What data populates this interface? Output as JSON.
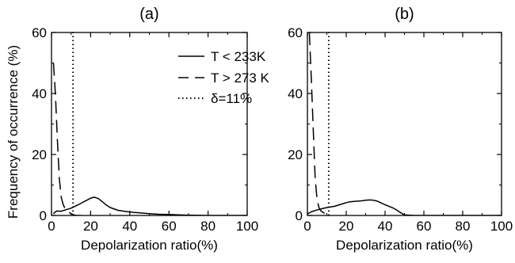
{
  "chart_data": [
    {
      "type": "line",
      "title": "(a)",
      "xlabel": "Depolarization ratio(%)",
      "ylabel": "Frequency of occurrence (%)",
      "xlim": [
        0,
        100
      ],
      "ylim": [
        0,
        60
      ],
      "xticks": [
        "0",
        "20",
        "40",
        "60",
        "80",
        "100"
      ],
      "yticks": [
        "0",
        "20",
        "40",
        "60"
      ],
      "grid": false,
      "legend_position": "top-right",
      "series": [
        {
          "name": "T < 233K",
          "style": "solid",
          "x": [
            1,
            2,
            3,
            4,
            5,
            6,
            8,
            10,
            12,
            14,
            16,
            18,
            20,
            22,
            24,
            26,
            28,
            30,
            34,
            38,
            42,
            46,
            50,
            55,
            60,
            65,
            70,
            75,
            80,
            85,
            90,
            95,
            100
          ],
          "y": [
            0.5,
            1.2,
            1.5,
            1.4,
            1.4,
            1.6,
            2.0,
            2.4,
            3.0,
            3.6,
            4.3,
            5.0,
            5.7,
            6.0,
            5.5,
            4.5,
            3.4,
            2.6,
            1.7,
            1.3,
            1.0,
            0.8,
            0.6,
            0.4,
            0.3,
            0.2,
            0.1,
            0.05,
            0,
            0,
            0,
            0,
            0
          ]
        },
        {
          "name": "T > 273 K",
          "style": "dashed",
          "x": [
            1,
            2,
            3,
            4,
            5,
            6,
            7,
            8,
            9,
            10,
            11,
            12,
            13,
            14,
            15
          ],
          "y": [
            50,
            40,
            25,
            12,
            6,
            3.5,
            2.2,
            1.5,
            1.0,
            0.6,
            0.3,
            0.1,
            0,
            0,
            0
          ]
        },
        {
          "name": "δ=11%",
          "style": "dotted",
          "x": [
            11,
            11
          ],
          "y": [
            0,
            60
          ]
        }
      ]
    },
    {
      "type": "line",
      "title": "(b)",
      "xlabel": "Depolarization ratio(%)",
      "ylabel": "",
      "xlim": [
        0,
        100
      ],
      "ylim": [
        0,
        60
      ],
      "xticks": [
        "0",
        "20",
        "40",
        "60",
        "80",
        "100"
      ],
      "yticks": [
        "0",
        "20",
        "40",
        "60"
      ],
      "grid": false,
      "series": [
        {
          "name": "T < 233K",
          "style": "solid",
          "x": [
            0,
            2,
            4,
            6,
            8,
            10,
            12,
            14,
            16,
            18,
            20,
            22,
            24,
            26,
            28,
            30,
            32,
            34,
            36,
            38,
            40,
            42,
            44,
            46,
            48,
            50,
            55,
            60,
            70,
            80,
            90,
            100
          ],
          "y": [
            0.5,
            1.2,
            1.6,
            2.0,
            2.3,
            2.6,
            2.8,
            3.0,
            3.4,
            3.8,
            4.2,
            4.5,
            4.6,
            4.7,
            4.8,
            5.0,
            5.1,
            5.0,
            4.7,
            4.1,
            3.5,
            3.0,
            2.5,
            1.8,
            0.9,
            0.2,
            0,
            0,
            0,
            0,
            0,
            0
          ]
        },
        {
          "name": "T > 273 K",
          "style": "dashed",
          "x": [
            1,
            2,
            3,
            4,
            5,
            6,
            7,
            8,
            9,
            10,
            11,
            12
          ],
          "y": [
            60,
            45,
            28,
            12,
            5,
            2.5,
            1.5,
            1.0,
            0.6,
            0.3,
            0.1,
            0
          ]
        },
        {
          "name": "δ=11%",
          "style": "dotted",
          "x": [
            11,
            11
          ],
          "y": [
            0,
            60
          ]
        }
      ]
    }
  ]
}
